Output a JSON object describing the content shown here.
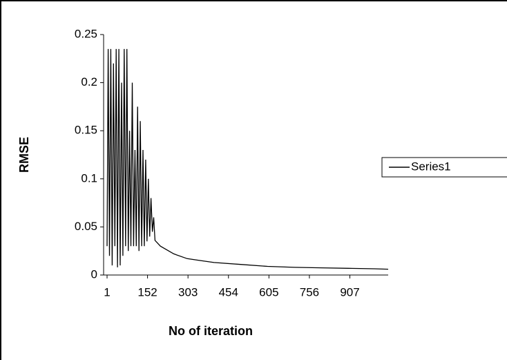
{
  "chart_data": {
    "type": "line",
    "x_label": "No of iteration",
    "y_label": "RMSE",
    "x": [
      1,
      5,
      10,
      15,
      20,
      25,
      30,
      35,
      40,
      45,
      50,
      55,
      60,
      65,
      70,
      75,
      80,
      85,
      90,
      95,
      100,
      105,
      110,
      115,
      120,
      125,
      130,
      135,
      140,
      145,
      150,
      155,
      160,
      165,
      170,
      175,
      180,
      200,
      250,
      300,
      350,
      400,
      500,
      600,
      700,
      800,
      900,
      1000,
      1050
    ],
    "series": [
      {
        "name": "Series1",
        "color": "#000000",
        "values": [
          0.03,
          0.235,
          0.02,
          0.235,
          0.01,
          0.22,
          0.03,
          0.235,
          0.008,
          0.235,
          0.01,
          0.2,
          0.02,
          0.235,
          0.03,
          0.235,
          0.025,
          0.15,
          0.03,
          0.2,
          0.03,
          0.13,
          0.03,
          0.175,
          0.025,
          0.16,
          0.03,
          0.13,
          0.03,
          0.12,
          0.035,
          0.1,
          0.04,
          0.08,
          0.045,
          0.06,
          0.036,
          0.03,
          0.022,
          0.017,
          0.015,
          0.013,
          0.011,
          0.009,
          0.008,
          0.0075,
          0.007,
          0.0065,
          0.006
        ]
      }
    ],
    "xlim": [
      1,
      1050
    ],
    "xticks": [
      1,
      152,
      303,
      454,
      605,
      756,
      907
    ],
    "ylim": [
      0,
      0.25
    ],
    "yticks": [
      0,
      0.05,
      0.1,
      0.15,
      0.2,
      0.25
    ],
    "legend": "right"
  }
}
